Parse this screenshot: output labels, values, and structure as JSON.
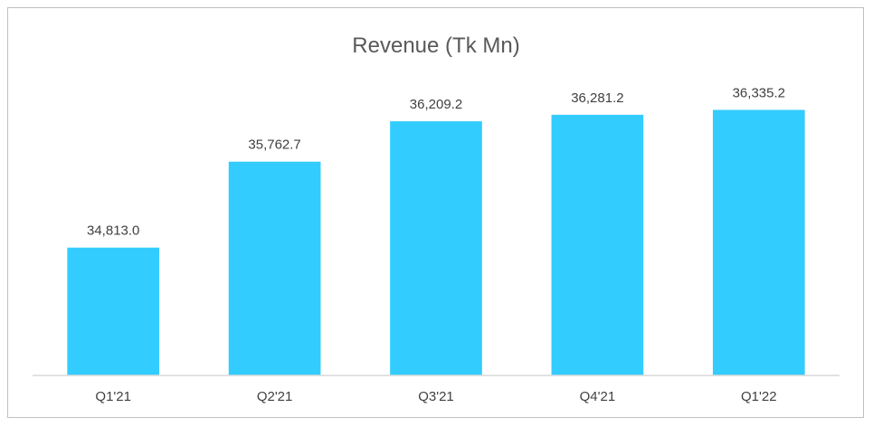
{
  "chart_data": {
    "type": "bar",
    "title": "Revenue (Tk Mn)",
    "categories": [
      "Q1'21",
      "Q2'21",
      "Q3'21",
      "Q4'21",
      "Q1'22"
    ],
    "values": [
      34813.0,
      35762.7,
      36209.2,
      36281.2,
      36335.2
    ],
    "value_labels": [
      "34,813.0",
      "35,762.7",
      "36,209.2",
      "36,281.2",
      "36,335.2"
    ],
    "xlabel": "",
    "ylabel": "",
    "ylim": [
      33400,
      36950
    ],
    "grid": false,
    "legend": "none",
    "bar_color": "#33CCFF"
  }
}
